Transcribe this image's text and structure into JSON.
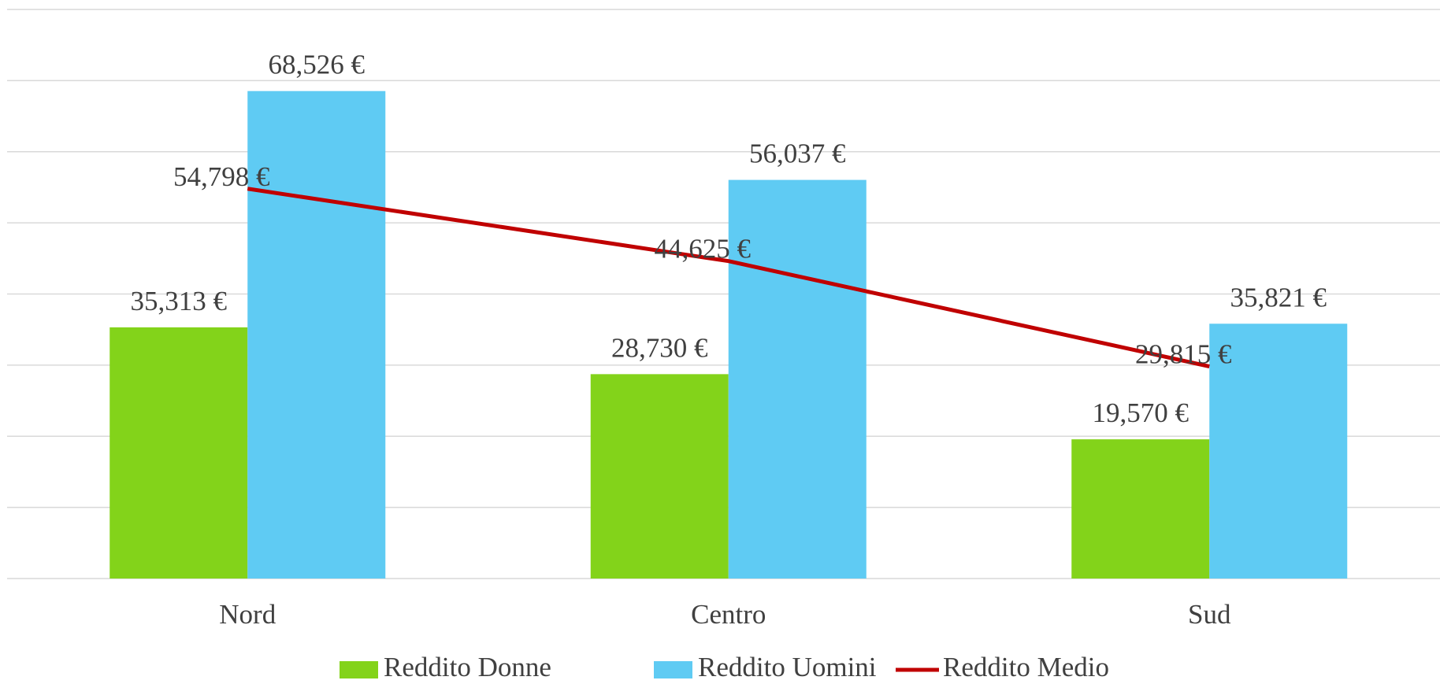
{
  "chart_data": {
    "type": "bar",
    "categories": [
      "Nord",
      "Centro",
      "Sud"
    ],
    "series": [
      {
        "name": "Reddito Donne",
        "type": "bar",
        "color": "#83d31a",
        "values": [
          35313,
          28730,
          19570
        ],
        "value_labels": [
          "35,313 €",
          "28,730 €",
          "19,570 €"
        ]
      },
      {
        "name": "Reddito Uomini",
        "type": "bar",
        "color": "#5fcbf3",
        "values": [
          68526,
          56037,
          35821
        ],
        "value_labels": [
          "68,526 €",
          "56,037 €",
          "35,821 €"
        ]
      },
      {
        "name": "Reddito Medio",
        "type": "line",
        "color": "#c00000",
        "values": [
          54798,
          44625,
          29815
        ],
        "value_labels": [
          "54,798 €",
          "44,625 €",
          "29,815 €"
        ]
      }
    ],
    "ylim": [
      0,
      80000
    ],
    "yticks": [
      0,
      10000,
      20000,
      30000,
      40000,
      50000,
      60000,
      70000,
      80000
    ],
    "grid": true,
    "legend": "bottom"
  }
}
